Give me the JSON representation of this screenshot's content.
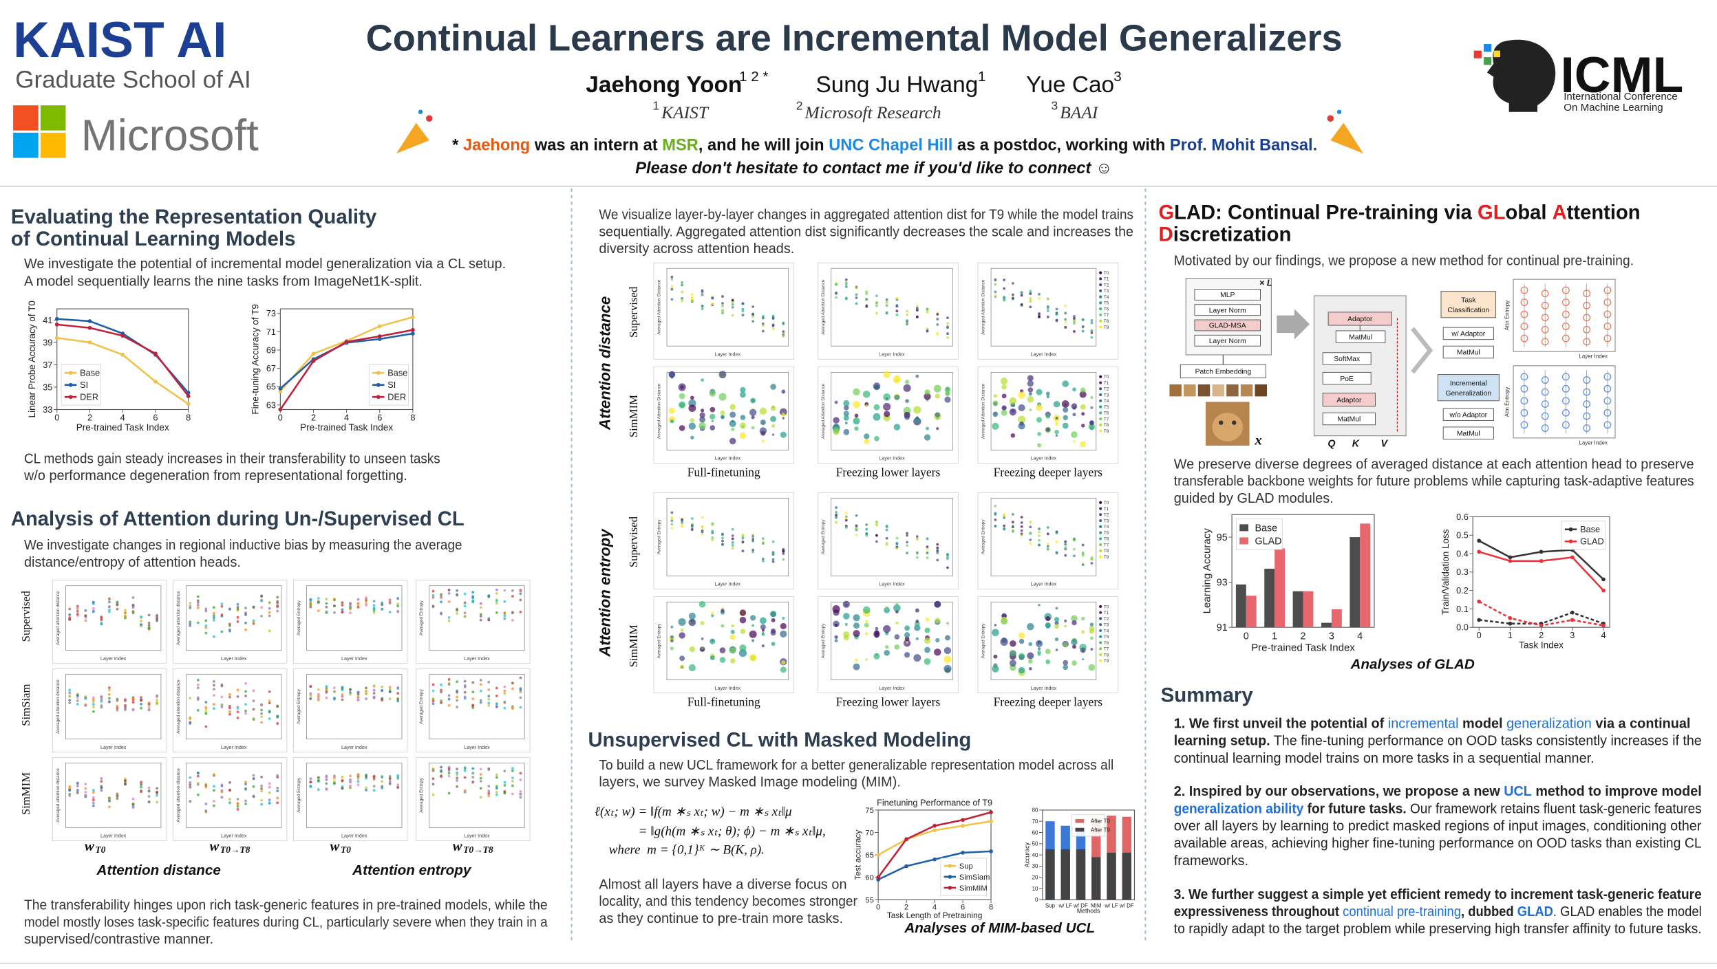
{
  "header": {
    "kaist": "KAIST AI",
    "kaist_school": "Graduate School of AI",
    "microsoft": "Microsoft",
    "title": "Continual Learners are Incremental Model Generalizers",
    "authors": [
      {
        "name": "Jaehong Yoon",
        "sup": "1 2 *"
      },
      {
        "name": "Sung Ju Hwang",
        "sup": "1"
      },
      {
        "name": "Yue Cao",
        "sup": "3"
      }
    ],
    "affiliations": [
      {
        "sup": "1",
        "name": "KAIST"
      },
      {
        "sup": "2",
        "name": "Microsoft Research"
      },
      {
        "sup": "3",
        "name": "BAAI"
      }
    ],
    "note": [
      {
        "text": "* "
      },
      {
        "text": "Jaehong",
        "color": "#e8590c"
      },
      {
        "text": " was an intern at "
      },
      {
        "text": "MSR",
        "color": "#6aab1f"
      },
      {
        "text": ", and he will join "
      },
      {
        "text": "UNC Chapel Hill",
        "color": "#1e88e5"
      },
      {
        "text": " as a postdoc, working with "
      },
      {
        "text": "Prof. Mohit Bansal.",
        "color": "#1a3f8f"
      }
    ],
    "contact": "Please don't hesitate to contact me if you'd like to connect ☺",
    "icml": "ICML",
    "icml_sub": [
      "International Conference",
      "On Machine Learning"
    ]
  },
  "left": {
    "heading1": [
      "Evaluating the Representation Quality",
      "of Continual Learning Models"
    ],
    "intro1": [
      "We investigate the potential of incremental model generalization via a CL setup.",
      "A model sequentially learns the nine tasks from ImageNet1K-split."
    ],
    "probe_chart": {
      "type": "line",
      "ylabel": "Linear Probe Accuracy of T0",
      "xlabel": "Pre-trained Task Index",
      "x": [
        0,
        2,
        4,
        6,
        8
      ],
      "xlim": [
        0,
        8
      ],
      "ylim": [
        33,
        42
      ],
      "xticks": [
        0,
        2,
        4,
        6,
        8
      ],
      "yticks": [
        33,
        35,
        37,
        39,
        41
      ],
      "legend": "lower left",
      "series": [
        {
          "name": "Base",
          "color": "#f0c24a",
          "values": [
            39.4,
            39.0,
            37.9,
            35.5,
            33.5
          ]
        },
        {
          "name": "SI",
          "color": "#1f5fa8",
          "values": [
            41.1,
            40.9,
            39.8,
            37.9,
            34.5
          ]
        },
        {
          "name": "DER",
          "color": "#c0203a",
          "values": [
            40.6,
            40.3,
            39.6,
            38.0,
            34.2
          ]
        }
      ]
    },
    "finetune_chart": {
      "type": "line",
      "ylabel": "Fine-tuning Accuracy of T9",
      "xlabel": "Pre-trained Task Index",
      "x": [
        0,
        2,
        4,
        6,
        8
      ],
      "xlim": [
        0,
        8
      ],
      "ylim": [
        62.5,
        73.5
      ],
      "xticks": [
        0,
        2,
        4,
        6,
        8
      ],
      "yticks": [
        63,
        65,
        67,
        69,
        71,
        73
      ],
      "legend": "lower right",
      "series": [
        {
          "name": "Base",
          "color": "#f0c24a",
          "values": [
            64.5,
            68.6,
            70.0,
            71.6,
            72.6
          ]
        },
        {
          "name": "SI",
          "color": "#1f5fa8",
          "values": [
            64.8,
            68.0,
            69.8,
            70.2,
            70.8
          ]
        },
        {
          "name": "DER",
          "color": "#c0203a",
          "values": [
            62.5,
            67.8,
            69.9,
            70.5,
            71.2
          ]
        }
      ]
    },
    "para1": [
      "CL methods gain steady increases in their transferability to unseen tasks",
      "w/o performance degeneration from representational forgetting."
    ],
    "heading2": "Analysis of Attention during Un-/Supervised CL",
    "intro2": [
      "We investigate changes in regional inductive bias by measuring the average",
      "distance/entropy of attention heads."
    ],
    "rows": [
      "Supervised",
      "SimSiam",
      "SimMIM"
    ],
    "columns": [
      {
        "main": "w",
        "sub": "T0"
      },
      {
        "main": "w",
        "sub": "T0→T8"
      },
      {
        "main": "w",
        "sub": "T0"
      },
      {
        "main": "w",
        "sub": "T0→T8"
      }
    ],
    "captions": [
      "Attention distance",
      "Attention entropy"
    ],
    "axis_x": "Layer Index",
    "axis_y": [
      "Averaged attention distance",
      "Averaged Entropy"
    ],
    "para2": [
      "The transferability hinges upon rich task-generic features in pre-trained models, while the",
      "model mostly loses task-specific features during CL, particularly severe when they train in a",
      "supervised/contrastive manner."
    ]
  },
  "middle": {
    "intro": [
      "We visualize layer-by-layer changes in aggregated attention dist for T9 while the model trains",
      "sequentially. Aggregated attention dist significantly decreases the scale and increases the",
      "diversity across attention heads."
    ],
    "groups": [
      "Attention distance",
      "Attention entropy"
    ],
    "rows": [
      "Supervised",
      "SimMIM"
    ],
    "columns": [
      "Full-finetuning",
      "Freezing lower layers",
      "Freezing deeper layers"
    ],
    "axis_x": "Layer Index",
    "axis_y": [
      "Averaged Attention Distance",
      "Averaged Entropy"
    ],
    "tasks": [
      "T0",
      "T1",
      "T2",
      "T3",
      "T4",
      "T5",
      "T6",
      "T7",
      "T8",
      "T9"
    ],
    "heading": "Unsupervised CL with Masked Modeling",
    "intro2": [
      "To build a new UCL framework for a better generalizable representation model across all",
      "layers, we survey Masked Image modeling (MIM)."
    ],
    "equation": [
      "ℓ(xₜ; w) = ‖f(m ∗ₛ xₜ; w) − m ∗ₛ xₜ‖μ",
      "= ‖g(h(m ∗ₛ xₜ; θ); ϕ) − m ∗ₛ xₜ‖μ,",
      "where  m = {0,1}ᴷ ∼ B(K, ρ)."
    ],
    "para": [
      "Almost all layers have a diverse focus on",
      "locality, and this tendency becomes stronger",
      "as they continue to pre-train more tasks."
    ],
    "mim_chart": {
      "type": "line",
      "title": "Finetuning Performance of T9",
      "ylabel": "Test accuracy",
      "xlabel": "Task Length of Pretraining",
      "x": [
        0,
        2,
        4,
        6,
        8
      ],
      "xlim": [
        0,
        8
      ],
      "ylim": [
        55,
        75
      ],
      "xticks": [
        0,
        2,
        4,
        6,
        8
      ],
      "yticks": [
        55,
        60,
        65,
        70,
        75
      ],
      "legend": "lower right",
      "series": [
        {
          "name": "Sup",
          "color": "#f0c24a",
          "values": [
            65,
            68.5,
            70.5,
            71.5,
            72.5
          ]
        },
        {
          "name": "SimSiam",
          "color": "#1f5fa8",
          "values": [
            59.5,
            62.5,
            64,
            65.5,
            65.8
          ]
        },
        {
          "name": "SimMIM",
          "color": "#c0203a",
          "values": [
            60,
            68.5,
            71.5,
            72.8,
            74.5
          ]
        }
      ]
    },
    "mim_bar": {
      "type": "bar",
      "overlap": true,
      "ylabel": "Accuracy",
      "xlabel": "Methods",
      "categories": [
        "Sup",
        "w/ LF",
        "w/ DF",
        "MIM",
        "w/ LF",
        "w/ DF"
      ],
      "ylim": [
        0,
        80
      ],
      "yticks": [
        0,
        10,
        20,
        30,
        40,
        50,
        60,
        70,
        80
      ],
      "legend": "upper center",
      "series": [
        {
          "name": "After T0",
          "color": "#e06666",
          "colors": [
            "#3c78d8",
            "#3c78d8",
            "#3c78d8",
            "#e06666",
            "#e06666",
            "#e06666"
          ],
          "values": [
            70,
            66,
            64,
            73,
            75,
            74
          ]
        },
        {
          "name": "After T9",
          "color": "#444444",
          "values": [
            45,
            45,
            45,
            38,
            42,
            42
          ]
        }
      ]
    },
    "caption": "Analyses of MIM-based UCL"
  },
  "right": {
    "heading": [
      [
        {
          "text": "G",
          "color": "#e02020"
        },
        {
          "text": "LAD: Continual Pre-training via "
        },
        {
          "text": "GL",
          "color": "#e02020"
        },
        {
          "text": "obal "
        },
        {
          "text": "A",
          "color": "#e02020"
        },
        {
          "text": "ttention"
        }
      ],
      [
        {
          "text": "D",
          "color": "#e02020"
        },
        {
          "text": "iscretization"
        }
      ]
    ],
    "intro": "Motivated by our findings, we propose a new method for continual pre-training.",
    "diagram": {
      "repeat": "× L",
      "encoder": [
        "MLP",
        "Layer Norm",
        "GLAD-MSA",
        "Layer Norm"
      ],
      "patch": "Patch Embedding",
      "input": "x",
      "attention": [
        "Adaptor",
        "MatMul",
        "SoftMax",
        "PoE",
        "Adaptor",
        "MatMul"
      ],
      "qkv": [
        "Q",
        "K",
        "V"
      ],
      "task": [
        "Task",
        "Classification"
      ],
      "with": "w/ Adaptor",
      "matmul": "MatMul",
      "incremental": [
        "Incremental",
        "Generalization"
      ],
      "without": "w/o Adaptor",
      "plot_y": "Attn Entropy",
      "plot_x": "Layer Index"
    },
    "para": [
      "We preserve diverse degrees of averaged distance at each attention head to preserve",
      "transferable backbone weights for future problems while capturing task-adaptive features",
      "guided by GLAD modules."
    ],
    "glad_bar": {
      "type": "bar",
      "ylabel": "Learning Accuracy",
      "xlabel": "Pre-trained Task Index",
      "categories": [
        "0",
        "1",
        "2",
        "3",
        "4"
      ],
      "ylim": [
        91,
        96
      ],
      "yticks": [
        91,
        93,
        95
      ],
      "legend": "upper left",
      "series": [
        {
          "name": "Base",
          "color": "#4d4d4d",
          "values": [
            92.9,
            93.6,
            92.6,
            91.2,
            95.0
          ]
        },
        {
          "name": "GLAD",
          "color": "#e8666d",
          "values": [
            92.4,
            94.5,
            92.6,
            91.8,
            95.6
          ]
        }
      ]
    },
    "loss_chart": {
      "type": "line",
      "ylabel": "Train/Validation Loss",
      "xlabel": "Task Index",
      "x": [
        0,
        1,
        2,
        3,
        4
      ],
      "xlim": [
        -0.2,
        4.2
      ],
      "ylim": [
        0,
        0.6
      ],
      "xticks": [
        0,
        1,
        2,
        3,
        4
      ],
      "yticks": [
        {
          "value": 0,
          "label": "0.0"
        },
        0.1,
        0.2,
        0.3,
        0.4,
        0.5,
        0.6
      ],
      "legend": "upper right",
      "series": [
        {
          "name": "Base",
          "color": "#333333",
          "values": [
            0.47,
            0.38,
            0.41,
            0.42,
            0.26
          ]
        },
        {
          "name": "GLAD",
          "color": "#e8333a",
          "values": [
            0.41,
            0.36,
            0.36,
            0.38,
            0.2
          ]
        },
        {
          "color": "#333333",
          "dash": true,
          "values": [
            0.04,
            0.02,
            0.02,
            0.08,
            0.02
          ]
        },
        {
          "color": "#e8333a",
          "dash": true,
          "values": [
            0.14,
            0.05,
            0.01,
            0.04,
            0.01
          ]
        }
      ]
    },
    "caption": "Analyses of GLAD",
    "summary_title": "Summary",
    "summary": [
      [
        [
          {
            "text": "1. We first unveil the potential of ",
            "bold": true
          },
          {
            "text": "incremental",
            "color": "#1e6fd9"
          },
          {
            "text": " model ",
            "bold": true
          },
          {
            "text": "generalization",
            "color": "#1e6fd9"
          },
          {
            "text": " via a continual",
            "bold": true
          }
        ],
        [
          {
            "text": "learning setup.",
            "bold": true
          },
          {
            "text": " The fine-tuning performance on OOD tasks consistently increases if the"
          }
        ],
        [
          {
            "text": "continual learning model trains on more tasks in a sequential manner."
          }
        ]
      ],
      [
        [
          {
            "text": "2. Inspired by our observations, we propose a new ",
            "bold": true
          },
          {
            "text": "UCL",
            "color": "#1e6fd9",
            "bold": true
          },
          {
            "text": " method to improve model",
            "bold": true
          }
        ],
        [
          {
            "text": "generalization ability",
            "color": "#1e6fd9",
            "bold": true
          },
          {
            "text": " for future tasks.",
            "bold": true
          },
          {
            "text": " Our framework retains fluent task-generic features"
          }
        ],
        [
          {
            "text": "over all layers by learning to predict masked regions of input images, conditioning other"
          }
        ],
        [
          {
            "text": "available areas, achieving higher fine-tuning performance on OOD tasks than existing CL"
          }
        ],
        [
          {
            "text": "frameworks."
          }
        ]
      ],
      [
        [
          {
            "text": "3. We further suggest a simple yet efficient remedy to increment task-generic feature",
            "bold": true
          }
        ],
        [
          {
            "text": "expressiveness throughout ",
            "bold": true
          },
          {
            "text": "continual pre-training",
            "color": "#1e6fd9"
          },
          {
            "text": ", dubbed ",
            "bold": true
          },
          {
            "text": "GLAD",
            "color": "#1e6fd9",
            "bold": true
          },
          {
            "text": ". GLAD enables the model"
          }
        ],
        [
          {
            "text": "to rapidly adapt to the target problem while preserving high transfer affinity to future tasks."
          }
        ]
      ]
    ]
  }
}
